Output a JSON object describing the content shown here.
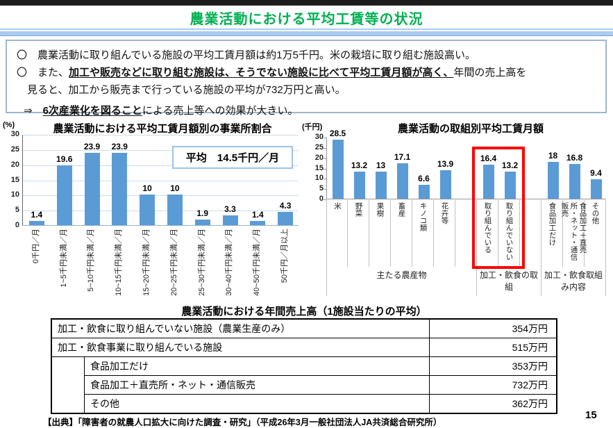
{
  "page": {
    "title": "農業活動における平均工賃等の状況",
    "page_number": "15",
    "source": "【出典】「障害者の就農人口拡大に向けた調査・研究」（平成26年3月一般社団法人JA共済総合研究所）"
  },
  "colors": {
    "title_green": "#00B050",
    "bar_blue": "#5B9BD5",
    "highlight_red": "#FF0000",
    "gridline_blue": "#C9DDF1"
  },
  "summary": {
    "lines": [
      {
        "indent": 0,
        "parts": [
          {
            "t": "〇　農業活動に取り組んでいる施設の平均工賃月額は約1万5千円。米の栽培に取り組む施設高い。",
            "em": false
          }
        ]
      },
      {
        "indent": 0,
        "parts": [
          {
            "t": "〇　また、",
            "em": false
          },
          {
            "t": "加工や販売などに取り組む施設は、そうでない施設に比べて平均工賃月額が高く、",
            "em": true
          },
          {
            "t": "年間の売上高を",
            "em": false
          }
        ]
      },
      {
        "indent": 1,
        "parts": [
          {
            "t": "見ると、加工から販売まで行っている施設の平均が732万円と高い。",
            "em": false
          }
        ]
      },
      {
        "indent": 2,
        "parts": [
          {
            "t": "⇒　",
            "em": false
          },
          {
            "t": "6次産業化を図ること",
            "em": true
          },
          {
            "t": "による売上等への効果が大きい。",
            "em": false
          }
        ]
      }
    ]
  },
  "chart_data": [
    {
      "type": "bar",
      "title": "農業活動における平均工賃月額別の事業所割合",
      "unit_label": "(%)",
      "categories": [
        "0千円／月",
        "1~5千円未満／月",
        "5~10千円未満／月",
        "10~15千円未満／月",
        "15~20千円未満／月",
        "20~25千円未満／月",
        "25~30千円未満／月",
        "30~40千円未満／月",
        "40~50千円未満／月",
        "50千円／月以上"
      ],
      "values": [
        1.4,
        19.6,
        23.9,
        23.9,
        10,
        10,
        1.9,
        3.3,
        1.4,
        4.3
      ],
      "ylim": [
        0,
        30
      ],
      "yticks": [
        0,
        5,
        10,
        15,
        20,
        25,
        30
      ],
      "grid": true,
      "legend": "none",
      "annotation": "平均　14.5千円／月"
    },
    {
      "type": "bar",
      "title": "農業活動の取組別平均工賃月額",
      "unit_label": "(千円)",
      "ylim": [
        0,
        30
      ],
      "yticks": [
        0,
        5,
        10,
        15,
        20,
        25,
        30
      ],
      "grid": false,
      "legend": "none",
      "groups": [
        {
          "label": "主たる農産物",
          "categories": [
            "米",
            "野菜",
            "果樹",
            "畜産",
            "キノコ類",
            "花卉等"
          ],
          "values": [
            28.5,
            13.2,
            13,
            17.1,
            6.6,
            13.9
          ],
          "highlight": false
        },
        {
          "label": "加工・飲食の取組",
          "categories": [
            "取り組んでいる",
            "取り組んでいない"
          ],
          "values": [
            16.4,
            13.2
          ],
          "highlight": true
        },
        {
          "label": "加工・飲食取組み内容",
          "categories": [
            "食品加工だけ",
            "食品加工＋直売所・ネット・通信販売",
            "その他"
          ],
          "values": [
            18,
            16.8,
            9.4
          ],
          "highlight": false
        }
      ]
    }
  ],
  "table": {
    "title": "農業活動における年間売上高（1施設当たりの平均）",
    "rows": [
      {
        "label": "加工・飲食に取り組んでいない施設（農業生産のみ）",
        "value": "354万円",
        "indent": false
      },
      {
        "label": "加工・飲食事業に取り組んでいる施設",
        "value": "515万円",
        "indent": false
      },
      {
        "label": "食品加工だけ",
        "value": "353万円",
        "indent": true
      },
      {
        "label": "食品加工＋直売所・ネット・通信販売",
        "value": "732万円",
        "indent": true
      },
      {
        "label": "その他",
        "value": "362万円",
        "indent": true
      }
    ]
  }
}
